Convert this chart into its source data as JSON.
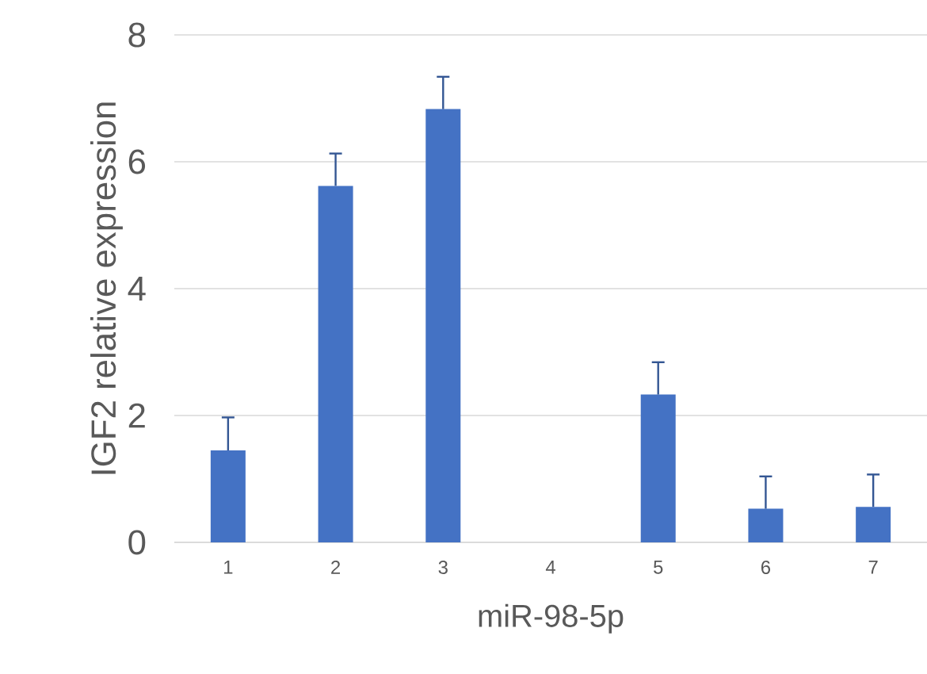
{
  "chart_data": {
    "type": "bar",
    "xlabel": "miR-98-5p",
    "ylabel": "IGF2 relative expression",
    "categories": [
      "1",
      "2",
      "3",
      "4",
      "5",
      "6",
      "7"
    ],
    "values": [
      1.45,
      5.62,
      6.83,
      0,
      2.33,
      0.53,
      0.56
    ],
    "errors": [
      [
        1.45,
        1.97
      ],
      [
        5.62,
        6.13
      ],
      [
        6.83,
        7.34
      ],
      null,
      [
        2.33,
        2.84
      ],
      [
        0.53,
        1.04
      ],
      [
        0.56,
        1.07
      ]
    ],
    "color": "#4472c4",
    "ylim": [
      0,
      8
    ],
    "yticks": [
      0,
      2,
      4,
      6,
      8
    ],
    "grid": "y"
  }
}
